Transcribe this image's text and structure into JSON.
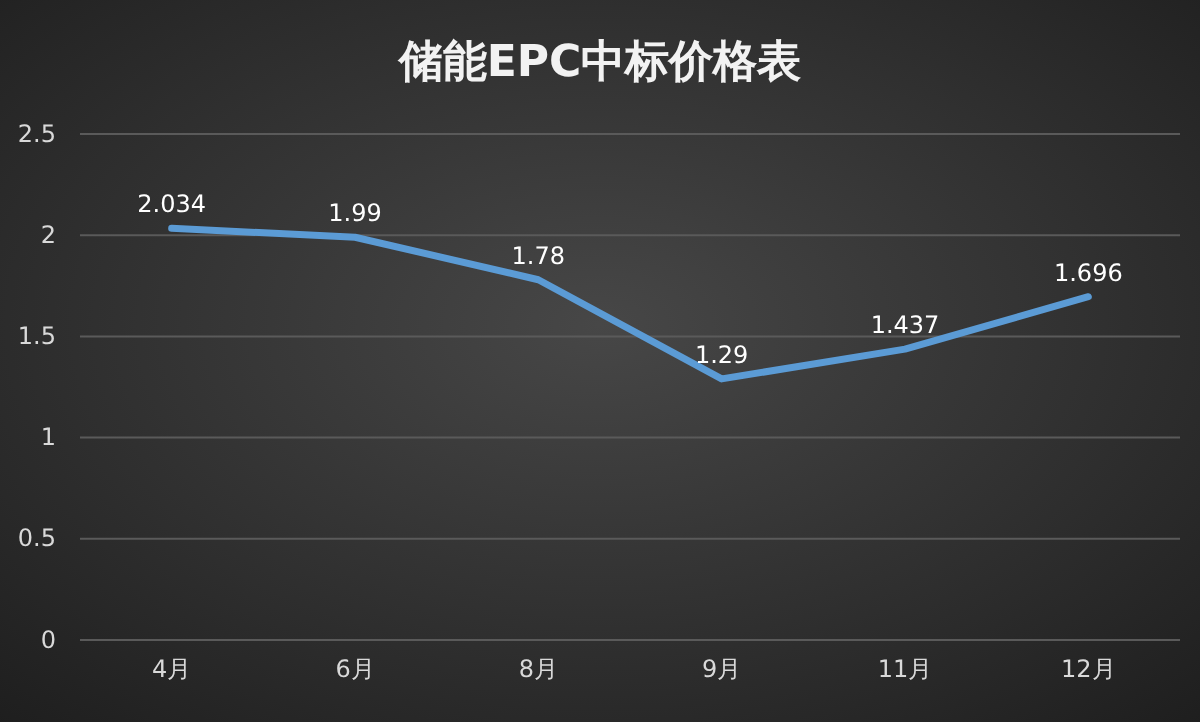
{
  "chart_data": {
    "type": "line",
    "title": "储能EPC中标价格表",
    "categories": [
      "4月",
      "6月",
      "8月",
      "9月",
      "11月",
      "12月"
    ],
    "series": [
      {
        "color": "#5b9bd5",
        "values": [
          2.034,
          1.99,
          1.78,
          1.29,
          1.437,
          1.696
        ]
      }
    ],
    "ylim": [
      0,
      2.5
    ],
    "yticks": [
      0,
      0.5,
      1,
      1.5,
      2,
      2.5
    ],
    "grid": "y",
    "data_labels": true,
    "marker": "none",
    "line_style": "solid"
  }
}
